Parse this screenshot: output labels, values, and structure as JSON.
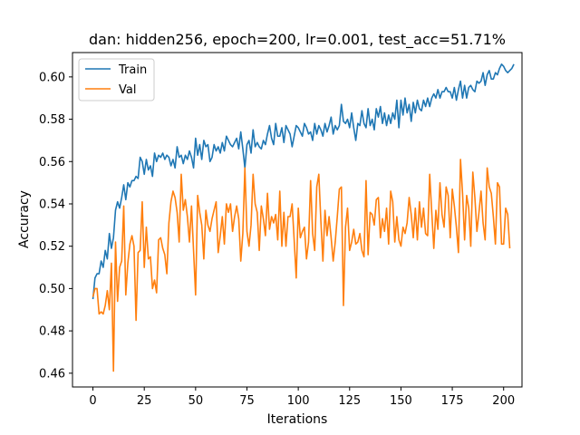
{
  "chart_data": {
    "type": "line",
    "title": "dan: hidden256, epoch=200, lr=0.001, test_acc=51.71%",
    "xlabel": "Iterations",
    "ylabel": "Accuracy",
    "xlim": [
      -9.95,
      208.95
    ],
    "ylim": [
      0.4535,
      0.6115
    ],
    "xticks": [
      0,
      25,
      50,
      75,
      100,
      125,
      150,
      175,
      200
    ],
    "yticks": [
      0.46,
      0.48,
      0.5,
      0.52,
      0.54,
      0.56,
      0.58,
      0.6
    ],
    "ytick_labels": [
      "0.46",
      "0.48",
      "0.50",
      "0.52",
      "0.54",
      "0.56",
      "0.58",
      "0.60"
    ],
    "grid": false,
    "legend_position": "top-left",
    "series": [
      {
        "name": "Train",
        "color": "#1f77b4",
        "values": [
          0.495,
          0.505,
          0.507,
          0.507,
          0.513,
          0.51,
          0.518,
          0.514,
          0.526,
          0.519,
          0.524,
          0.537,
          0.541,
          0.538,
          0.543,
          0.549,
          0.542,
          0.55,
          0.548,
          0.551,
          0.551,
          0.553,
          0.552,
          0.562,
          0.56,
          0.554,
          0.561,
          0.556,
          0.558,
          0.553,
          0.564,
          0.56,
          0.563,
          0.562,
          0.564,
          0.561,
          0.563,
          0.562,
          0.558,
          0.561,
          0.557,
          0.567,
          0.562,
          0.563,
          0.559,
          0.563,
          0.561,
          0.565,
          0.562,
          0.557,
          0.571,
          0.563,
          0.568,
          0.561,
          0.57,
          0.567,
          0.568,
          0.56,
          0.562,
          0.568,
          0.565,
          0.567,
          0.564,
          0.569,
          0.565,
          0.572,
          0.57,
          0.568,
          0.567,
          0.569,
          0.571,
          0.566,
          0.574,
          0.566,
          0.557,
          0.568,
          0.57,
          0.564,
          0.575,
          0.567,
          0.569,
          0.567,
          0.566,
          0.57,
          0.568,
          0.573,
          0.577,
          0.571,
          0.568,
          0.578,
          0.572,
          0.572,
          0.576,
          0.569,
          0.577,
          0.575,
          0.573,
          0.567,
          0.572,
          0.577,
          0.576,
          0.574,
          0.572,
          0.578,
          0.576,
          0.573,
          0.574,
          0.57,
          0.578,
          0.573,
          0.577,
          0.575,
          0.572,
          0.578,
          0.574,
          0.577,
          0.581,
          0.573,
          0.577,
          0.575,
          0.577,
          0.587,
          0.579,
          0.578,
          0.58,
          0.576,
          0.583,
          0.576,
          0.57,
          0.578,
          0.577,
          0.584,
          0.578,
          0.576,
          0.585,
          0.577,
          0.58,
          0.575,
          0.585,
          0.581,
          0.586,
          0.578,
          0.583,
          0.577,
          0.582,
          0.578,
          0.583,
          0.58,
          0.589,
          0.576,
          0.589,
          0.582,
          0.59,
          0.583,
          0.587,
          0.579,
          0.588,
          0.583,
          0.589,
          0.585,
          0.584,
          0.589,
          0.586,
          0.59,
          0.586,
          0.59,
          0.592,
          0.59,
          0.594,
          0.59,
          0.593,
          0.593,
          0.595,
          0.593,
          0.593,
          0.59,
          0.595,
          0.589,
          0.594,
          0.598,
          0.59,
          0.596,
          0.59,
          0.595,
          0.596,
          0.594,
          0.593,
          0.598,
          0.597,
          0.598,
          0.602,
          0.596,
          0.601,
          0.603,
          0.599,
          0.599,
          0.602,
          0.601,
          0.604,
          0.606,
          0.605,
          0.603,
          0.602,
          0.603,
          0.604,
          0.606
        ]
      },
      {
        "name": "Val",
        "color": "#ff7f0e",
        "values": [
          0.496,
          0.5,
          0.5,
          0.488,
          0.489,
          0.488,
          0.492,
          0.499,
          0.49,
          0.512,
          0.461,
          0.522,
          0.494,
          0.51,
          0.513,
          0.539,
          0.497,
          0.512,
          0.521,
          0.525,
          0.52,
          0.485,
          0.517,
          0.518,
          0.541,
          0.51,
          0.529,
          0.514,
          0.515,
          0.5,
          0.504,
          0.498,
          0.523,
          0.524,
          0.519,
          0.516,
          0.507,
          0.531,
          0.541,
          0.546,
          0.543,
          0.536,
          0.522,
          0.554,
          0.537,
          0.542,
          0.534,
          0.522,
          0.539,
          0.518,
          0.497,
          0.544,
          0.536,
          0.53,
          0.514,
          0.537,
          0.53,
          0.527,
          0.533,
          0.537,
          0.541,
          0.517,
          0.525,
          0.534,
          0.521,
          0.54,
          0.536,
          0.54,
          0.527,
          0.534,
          0.539,
          0.533,
          0.513,
          0.526,
          0.557,
          0.527,
          0.52,
          0.53,
          0.554,
          0.54,
          0.536,
          0.518,
          0.539,
          0.533,
          0.525,
          0.545,
          0.528,
          0.534,
          0.531,
          0.535,
          0.523,
          0.546,
          0.52,
          0.536,
          0.52,
          0.534,
          0.534,
          0.54,
          0.523,
          0.505,
          0.538,
          0.524,
          0.527,
          0.529,
          0.514,
          0.522,
          0.551,
          0.526,
          0.518,
          0.548,
          0.554,
          0.532,
          0.513,
          0.537,
          0.525,
          0.534,
          0.524,
          0.513,
          0.522,
          0.534,
          0.547,
          0.548,
          0.492,
          0.529,
          0.538,
          0.518,
          0.522,
          0.528,
          0.521,
          0.522,
          0.526,
          0.518,
          0.515,
          0.551,
          0.516,
          0.536,
          0.535,
          0.53,
          0.542,
          0.543,
          0.524,
          0.533,
          0.527,
          0.538,
          0.521,
          0.546,
          0.541,
          0.522,
          0.534,
          0.523,
          0.52,
          0.529,
          0.526,
          0.531,
          0.543,
          0.535,
          0.524,
          0.538,
          0.523,
          0.541,
          0.529,
          0.538,
          0.526,
          0.525,
          0.554,
          0.536,
          0.519,
          0.537,
          0.528,
          0.55,
          0.535,
          0.529,
          0.548,
          0.544,
          0.524,
          0.547,
          0.539,
          0.529,
          0.517,
          0.561,
          0.545,
          0.523,
          0.544,
          0.538,
          0.52,
          0.555,
          0.543,
          0.527,
          0.536,
          0.546,
          0.531,
          0.523,
          0.557,
          0.548,
          0.545,
          0.534,
          0.521,
          0.55,
          0.548,
          0.521,
          0.521,
          0.538,
          0.535,
          0.519
        ]
      }
    ]
  }
}
